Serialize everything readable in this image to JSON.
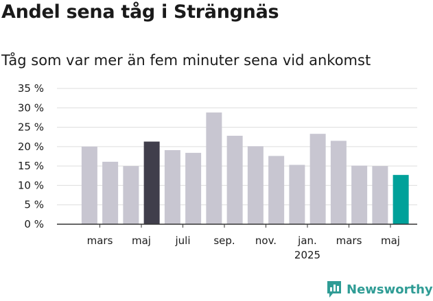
{
  "header": {
    "title": "Andel sena tåg i Strängnäs",
    "subtitle": "Tåg som var mer än fem minuter sena vid ankomst"
  },
  "brand": {
    "name": "Newsworthy",
    "color": "#2f9c95"
  },
  "colors": {
    "default_bar": "#c8c6d1",
    "highlight_dark": "#403e4b",
    "highlight_teal": "#00a19a",
    "grid": "#dddddd",
    "axis": "#333333"
  },
  "chart_data": {
    "type": "bar",
    "categories": [
      "2024-01",
      "2024-02",
      "2024-03",
      "2024-04",
      "2024-05",
      "2024-06",
      "2024-07",
      "2024-08",
      "2024-09",
      "2024-10",
      "2024-11",
      "2024-12",
      "2025-01",
      "2025-02",
      "2025-03",
      "2025-04",
      "2025-05"
    ],
    "values": [
      null,
      20.0,
      16.1,
      15.0,
      21.3,
      19.1,
      18.4,
      28.8,
      22.8,
      20.1,
      17.6,
      15.3,
      23.3,
      21.5,
      15.1,
      15.0,
      12.7
    ],
    "highlight": {
      "2024-05": "dark",
      "2025-05": "teal"
    },
    "ylim": [
      0,
      35
    ],
    "yticks": [
      0,
      5,
      10,
      15,
      20,
      25,
      30,
      35
    ],
    "ytick_labels": [
      "0 %",
      "5 %",
      "10 %",
      "15 %",
      "20 %",
      "25 %",
      "30 %",
      "35 %"
    ],
    "xtick_labels": [
      {
        "category": "2024-03",
        "lines": [
          "mars"
        ]
      },
      {
        "category": "2024-05",
        "lines": [
          "maj"
        ]
      },
      {
        "category": "2024-07",
        "lines": [
          "juli"
        ]
      },
      {
        "category": "2024-09",
        "lines": [
          "sep."
        ]
      },
      {
        "category": "2024-11",
        "lines": [
          "nov."
        ]
      },
      {
        "category": "2025-01",
        "lines": [
          "jan.",
          "2025"
        ]
      },
      {
        "category": "2025-03",
        "lines": [
          "mars"
        ]
      },
      {
        "category": "2025-05",
        "lines": [
          "maj"
        ]
      }
    ],
    "xlabel": "",
    "ylabel": "",
    "grid": true,
    "legend": "none"
  }
}
